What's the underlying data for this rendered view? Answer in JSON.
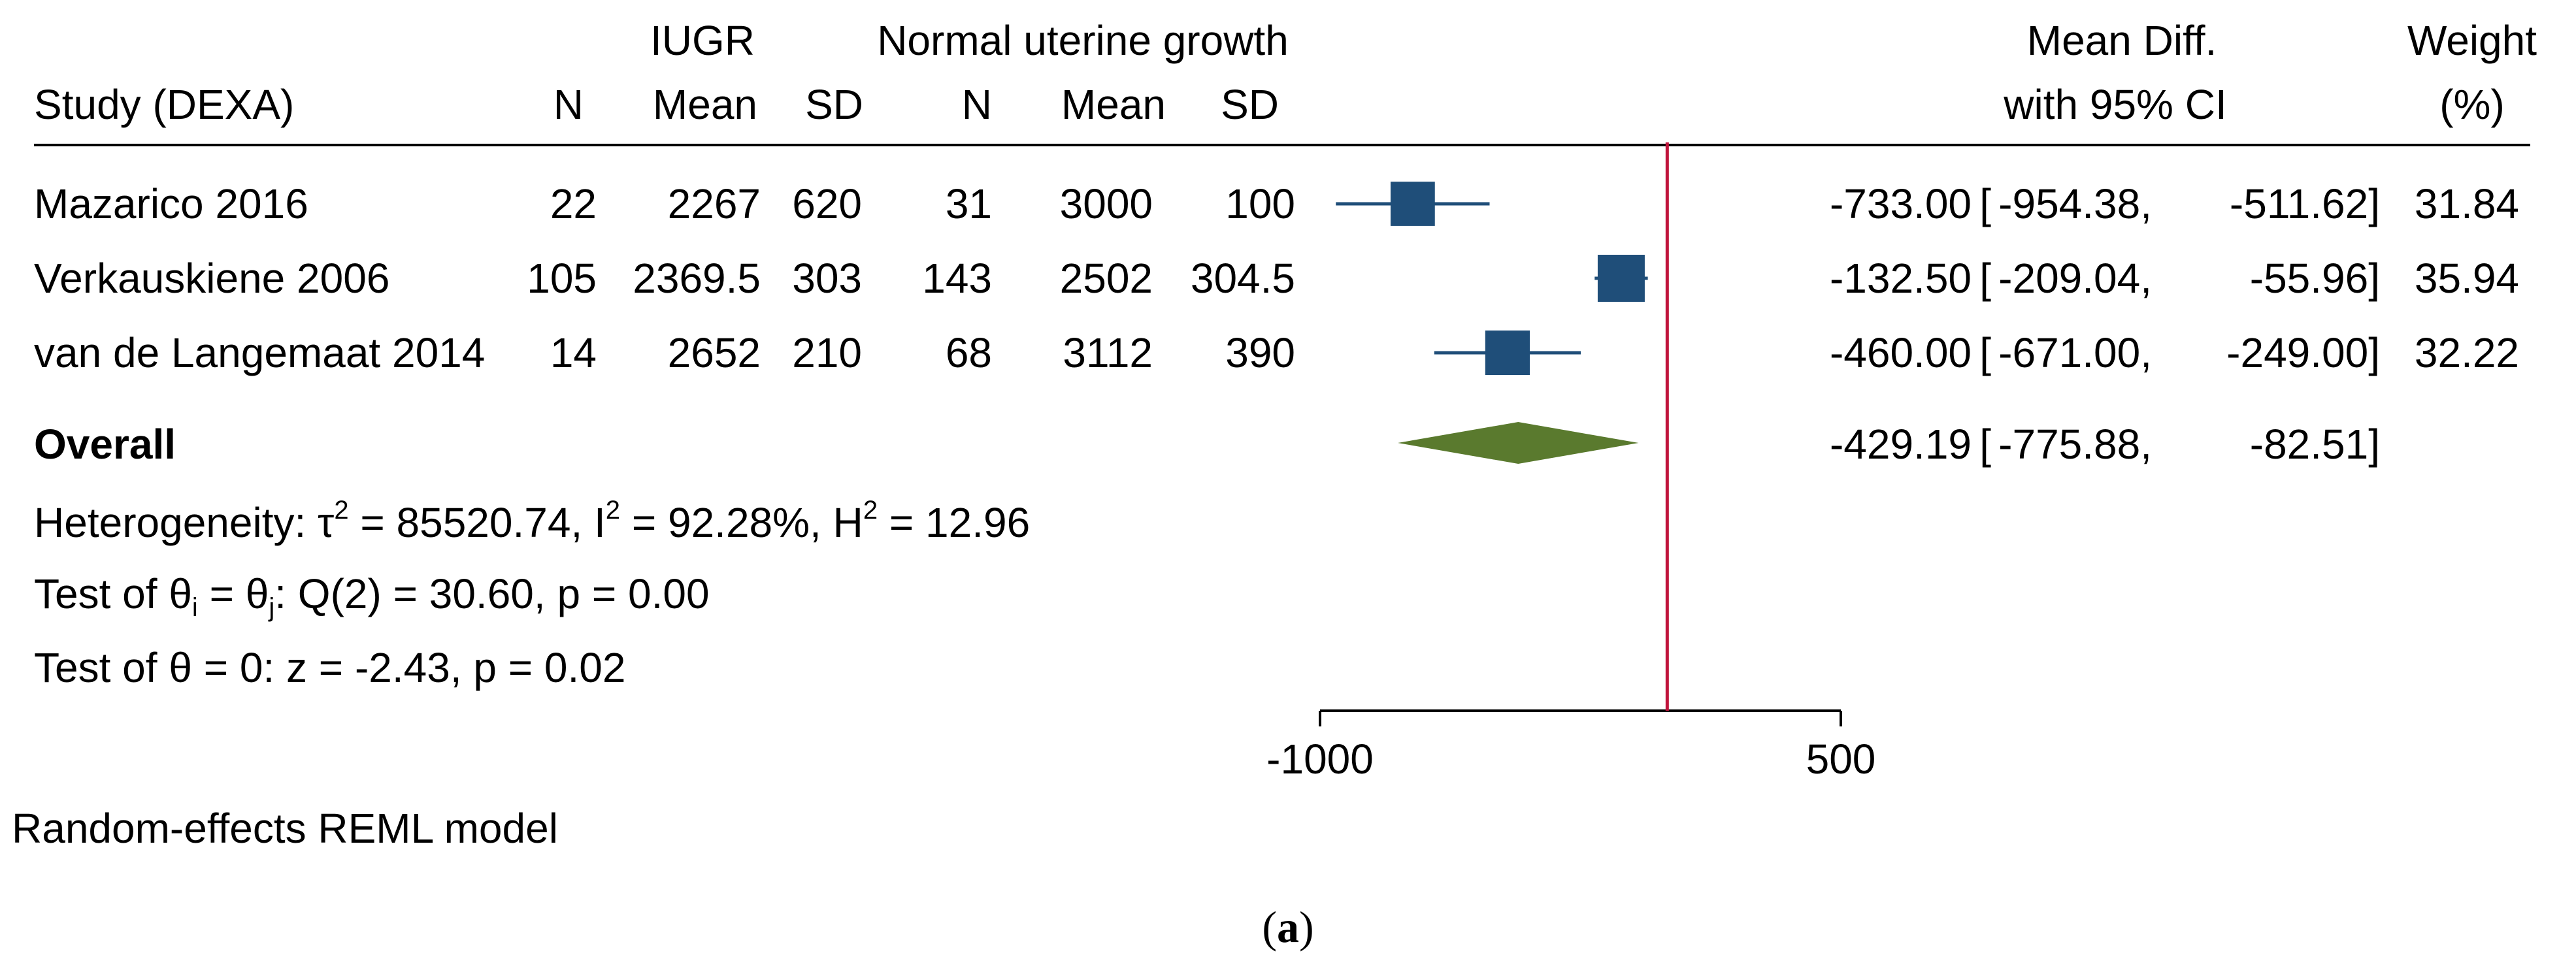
{
  "chart_data": {
    "type": "forest",
    "group_headers": {
      "iugr": "IUGR",
      "normal": "Normal uterine growth",
      "meandiff_top": "Mean Diff.",
      "weight_top": "Weight"
    },
    "column_headers": {
      "study": "Study (DEXA)",
      "iugr_n": "N",
      "iugr_mean": "Mean",
      "iugr_sd": "SD",
      "normal_n": "N",
      "normal_mean": "Mean",
      "normal_sd": "SD",
      "ci": "with 95% CI",
      "weight": "(%)"
    },
    "studies": [
      {
        "study": "Mazarico 2016",
        "iugr_n": "22",
        "iugr_mean": "2267",
        "iugr_sd": "620",
        "normal_n": "31",
        "normal_mean": "3000",
        "normal_sd": "100",
        "md": -733.0,
        "lo": -954.38,
        "hi": -511.62,
        "md_text": "-733.00",
        "lo_text": "-954.38,",
        "hi_text": "-511.62]",
        "weight_pct": 31.84,
        "weight_text": "31.84"
      },
      {
        "study": "Verkauskiene 2006",
        "iugr_n": "105",
        "iugr_mean": "2369.5",
        "iugr_sd": "303",
        "normal_n": "143",
        "normal_mean": "2502",
        "normal_sd": "304.5",
        "md": -132.5,
        "lo": -209.04,
        "hi": -55.96,
        "md_text": "-132.50",
        "lo_text": "-209.04,",
        "hi_text": "-55.96]",
        "weight_pct": 35.94,
        "weight_text": "35.94"
      },
      {
        "study": "van de Langemaat 2014",
        "iugr_n": "14",
        "iugr_mean": "2652",
        "iugr_sd": "210",
        "normal_n": "68",
        "normal_mean": "3112",
        "normal_sd": "390",
        "md": -460.0,
        "lo": -671.0,
        "hi": -249.0,
        "md_text": "-460.00",
        "lo_text": "-671.00,",
        "hi_text": "-249.00]",
        "weight_pct": 32.22,
        "weight_text": "32.22"
      }
    ],
    "overall": {
      "label": "Overall",
      "md": -429.19,
      "lo": -775.88,
      "hi": -82.51,
      "md_text": "-429.19",
      "lo_text": "-775.88,",
      "hi_text": "-82.51]"
    },
    "bracket_open": "[",
    "heterogeneity": {
      "prefix": "Heterogeneity: τ",
      "tau_sup": "2",
      "tau_val": " = 85520.74, I",
      "i_sup": "2",
      "i_val": " = 92.28%, H",
      "h_sup": "2",
      "h_val": " = 12.96"
    },
    "test_q": {
      "p1": "Test of θ",
      "s1": "i",
      "p2": " = θ",
      "s2": "j",
      "p3": ": Q(2) = 30.60, p = 0.00"
    },
    "test_z": "Test of θ = 0: z = -2.43, p = 0.02",
    "axis": {
      "xlim": [
        -1000,
        500
      ],
      "ticks": [
        -1000,
        500
      ],
      "tick_labels": [
        "-1000",
        "500"
      ],
      "null_line": 0
    },
    "model_note": "Random-effects REML model",
    "caption": {
      "open": "(",
      "letter": "a",
      "close": ")"
    },
    "colors": {
      "box": "#1f4e79",
      "diamond": "#5a7a2e",
      "null_line": "#c0143c",
      "ci_line": "#1f4e79"
    }
  }
}
